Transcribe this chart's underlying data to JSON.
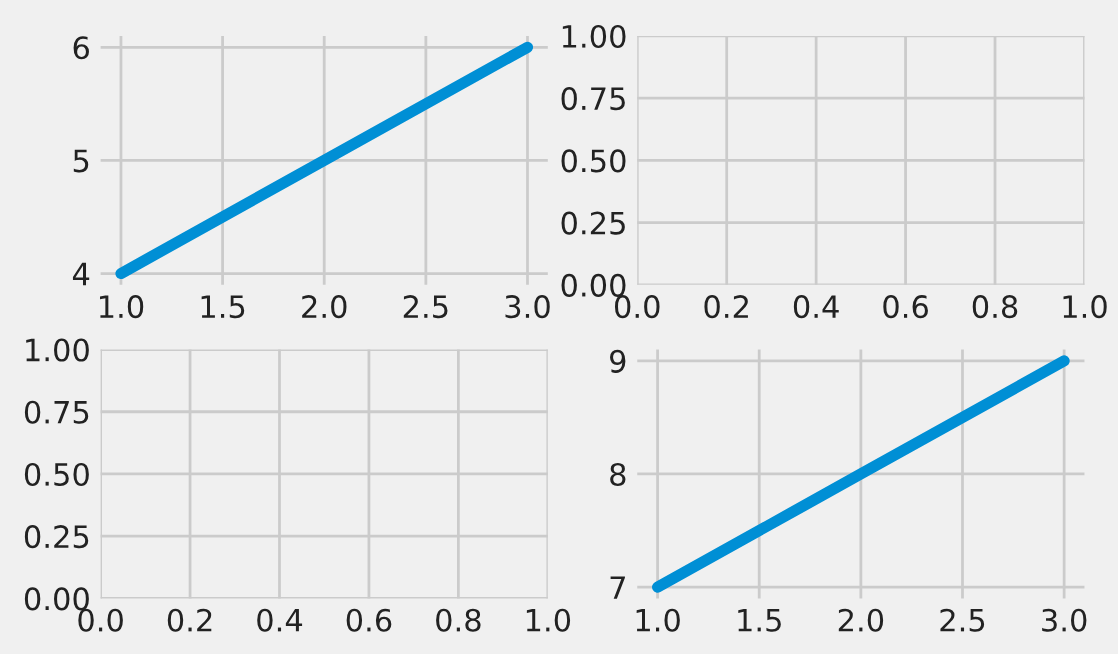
{
  "chart_data": [
    {
      "type": "line",
      "x": [
        1,
        2,
        3
      ],
      "series": [
        {
          "color": "#008fd5",
          "values": [
            4,
            5,
            6
          ]
        }
      ],
      "xlim": [
        0.9,
        3.1
      ],
      "ylim": [
        3.9,
        6.1
      ],
      "xticks": [
        {
          "value": 1,
          "label": "1.0"
        },
        {
          "value": 1.5,
          "label": "1.5"
        },
        {
          "value": 2,
          "label": "2.0"
        },
        {
          "value": 2.5,
          "label": "2.5"
        },
        {
          "value": 3,
          "label": "3.0"
        }
      ],
      "yticks": [
        4,
        5,
        6
      ],
      "grid": true
    },
    {
      "type": "line",
      "xlim": [
        0,
        1
      ],
      "ylim": [
        0,
        1
      ],
      "xticks": [
        {
          "value": 0,
          "label": "0.0"
        },
        {
          "value": 0.2,
          "label": "0.2"
        },
        {
          "value": 0.4,
          "label": "0.4"
        },
        {
          "value": 0.6,
          "label": "0.6"
        },
        {
          "value": 0.8,
          "label": "0.8"
        },
        {
          "value": 1,
          "label": "1.0"
        }
      ],
      "yticks": [
        {
          "value": 0,
          "label": "0.00"
        },
        {
          "value": 0.25,
          "label": "0.25"
        },
        {
          "value": 0.5,
          "label": "0.50"
        },
        {
          "value": 0.75,
          "label": "0.75"
        },
        {
          "value": 1,
          "label": "1.00"
        }
      ],
      "grid": true
    },
    {
      "type": "line",
      "xlim": [
        0,
        1
      ],
      "ylim": [
        0,
        1
      ],
      "xticks": [
        {
          "value": 0,
          "label": "0.0"
        },
        {
          "value": 0.2,
          "label": "0.2"
        },
        {
          "value": 0.4,
          "label": "0.4"
        },
        {
          "value": 0.6,
          "label": "0.6"
        },
        {
          "value": 0.8,
          "label": "0.8"
        },
        {
          "value": 1,
          "label": "1.0"
        }
      ],
      "yticks": [
        {
          "value": 0,
          "label": "0.00"
        },
        {
          "value": 0.25,
          "label": "0.25"
        },
        {
          "value": 0.5,
          "label": "0.50"
        },
        {
          "value": 0.75,
          "label": "0.75"
        },
        {
          "value": 1,
          "label": "1.00"
        }
      ],
      "grid": true
    },
    {
      "type": "line",
      "x": [
        1,
        2,
        3
      ],
      "series": [
        {
          "color": "#008fd5",
          "values": [
            7,
            8,
            9
          ]
        }
      ],
      "xlim": [
        0.9,
        3.1
      ],
      "ylim": [
        6.9,
        9.1
      ],
      "xticks": [
        {
          "value": 1,
          "label": "1.0"
        },
        {
          "value": 1.5,
          "label": "1.5"
        },
        {
          "value": 2,
          "label": "2.0"
        },
        {
          "value": 2.5,
          "label": "2.5"
        },
        {
          "value": 3,
          "label": "3.0"
        }
      ],
      "yticks": [
        7,
        8,
        9
      ],
      "grid": true
    }
  ]
}
